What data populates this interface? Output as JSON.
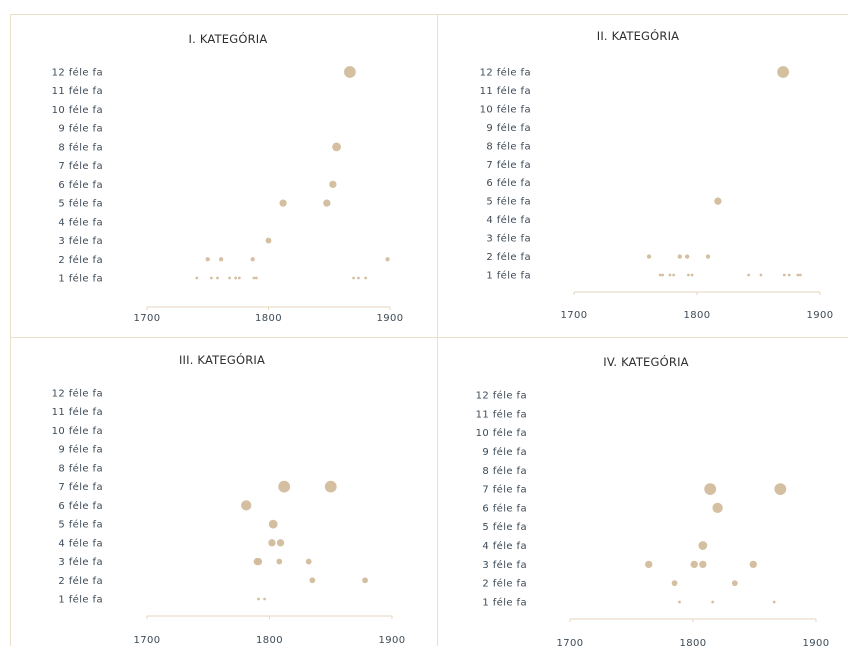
{
  "colors": {
    "dot": "#d2bc9c",
    "axis": "#e4d6bd",
    "text": "#3d4a56"
  },
  "y_labels": [
    "1 féle fa",
    "2 féle fa",
    "3 féle fa",
    "4 féle fa",
    "5 féle fa",
    "6 féle fa",
    "7 féle fa",
    "8 féle fa",
    "9 féle fa",
    "10 féle fa",
    "11 féle fa",
    "12 féle fa"
  ],
  "x_ticks": [
    "1700",
    "1800",
    "1900"
  ],
  "chart_data": [
    {
      "type": "scatter",
      "title": "I. KATEGÓRIA",
      "xlim": [
        1700,
        1900
      ],
      "ylim": [
        1,
        12
      ],
      "points": [
        {
          "x": 1741,
          "y": 1,
          "w": 1
        },
        {
          "x": 1753,
          "y": 1,
          "w": 1
        },
        {
          "x": 1758,
          "y": 1,
          "w": 1
        },
        {
          "x": 1768,
          "y": 1,
          "w": 1
        },
        {
          "x": 1773,
          "y": 1,
          "w": 1
        },
        {
          "x": 1776,
          "y": 1,
          "w": 1
        },
        {
          "x": 1788,
          "y": 1,
          "w": 1
        },
        {
          "x": 1790,
          "y": 1,
          "w": 1
        },
        {
          "x": 1870,
          "y": 1,
          "w": 1
        },
        {
          "x": 1874,
          "y": 1,
          "w": 1
        },
        {
          "x": 1880,
          "y": 1,
          "w": 1
        },
        {
          "x": 1750,
          "y": 2,
          "w": 2
        },
        {
          "x": 1761,
          "y": 2,
          "w": 2
        },
        {
          "x": 1787,
          "y": 2,
          "w": 2
        },
        {
          "x": 1898,
          "y": 2,
          "w": 2
        },
        {
          "x": 1800,
          "y": 3,
          "w": 3
        },
        {
          "x": 1812,
          "y": 5,
          "w": 4
        },
        {
          "x": 1848,
          "y": 5,
          "w": 4
        },
        {
          "x": 1853,
          "y": 6,
          "w": 4
        },
        {
          "x": 1856,
          "y": 8,
          "w": 5
        },
        {
          "x": 1867,
          "y": 12,
          "w": 7
        }
      ]
    },
    {
      "type": "scatter",
      "title": "II. KATEGÓRIA",
      "xlim": [
        1700,
        1900
      ],
      "ylim": [
        1,
        12
      ],
      "points": [
        {
          "x": 1770,
          "y": 1,
          "w": 1
        },
        {
          "x": 1772,
          "y": 1,
          "w": 1
        },
        {
          "x": 1778,
          "y": 1,
          "w": 1
        },
        {
          "x": 1781,
          "y": 1,
          "w": 1
        },
        {
          "x": 1793,
          "y": 1,
          "w": 1
        },
        {
          "x": 1796,
          "y": 1,
          "w": 1
        },
        {
          "x": 1842,
          "y": 1,
          "w": 1
        },
        {
          "x": 1852,
          "y": 1,
          "w": 1
        },
        {
          "x": 1871,
          "y": 1,
          "w": 1
        },
        {
          "x": 1875,
          "y": 1,
          "w": 1
        },
        {
          "x": 1882,
          "y": 1,
          "w": 1
        },
        {
          "x": 1884,
          "y": 1,
          "w": 1
        },
        {
          "x": 1761,
          "y": 2,
          "w": 2
        },
        {
          "x": 1786,
          "y": 2,
          "w": 2
        },
        {
          "x": 1792,
          "y": 2,
          "w": 2
        },
        {
          "x": 1809,
          "y": 2,
          "w": 2
        },
        {
          "x": 1817,
          "y": 5,
          "w": 4
        },
        {
          "x": 1870,
          "y": 12,
          "w": 7
        }
      ]
    },
    {
      "type": "scatter",
      "title": "III. KATEGÓRIA",
      "xlim": [
        1700,
        1900
      ],
      "ylim": [
        1,
        12
      ],
      "points": [
        {
          "x": 1791,
          "y": 1,
          "w": 1
        },
        {
          "x": 1796,
          "y": 1,
          "w": 1
        },
        {
          "x": 1835,
          "y": 2,
          "w": 3
        },
        {
          "x": 1878,
          "y": 2,
          "w": 3
        },
        {
          "x": 1790,
          "y": 3,
          "w": 4
        },
        {
          "x": 1791,
          "y": 3,
          "w": 4
        },
        {
          "x": 1808,
          "y": 3,
          "w": 3
        },
        {
          "x": 1832,
          "y": 3,
          "w": 3
        },
        {
          "x": 1802,
          "y": 4,
          "w": 4
        },
        {
          "x": 1809,
          "y": 4,
          "w": 4
        },
        {
          "x": 1803,
          "y": 5,
          "w": 5
        },
        {
          "x": 1781,
          "y": 6,
          "w": 6
        },
        {
          "x": 1812,
          "y": 7,
          "w": 7
        },
        {
          "x": 1850,
          "y": 7,
          "w": 7
        }
      ]
    },
    {
      "type": "scatter",
      "title": "IV. KATEGÓRIA",
      "xlim": [
        1700,
        1900
      ],
      "ylim": [
        1,
        12
      ],
      "points": [
        {
          "x": 1789,
          "y": 1,
          "w": 1
        },
        {
          "x": 1816,
          "y": 1,
          "w": 1
        },
        {
          "x": 1866,
          "y": 1,
          "w": 1
        },
        {
          "x": 1785,
          "y": 2,
          "w": 3
        },
        {
          "x": 1834,
          "y": 2,
          "w": 3
        },
        {
          "x": 1764,
          "y": 3,
          "w": 4
        },
        {
          "x": 1801,
          "y": 3,
          "w": 4
        },
        {
          "x": 1808,
          "y": 3,
          "w": 4
        },
        {
          "x": 1849,
          "y": 3,
          "w": 4
        },
        {
          "x": 1808,
          "y": 4,
          "w": 5
        },
        {
          "x": 1820,
          "y": 6,
          "w": 6
        },
        {
          "x": 1814,
          "y": 7,
          "w": 7
        },
        {
          "x": 1871,
          "y": 7,
          "w": 7
        }
      ]
    }
  ]
}
